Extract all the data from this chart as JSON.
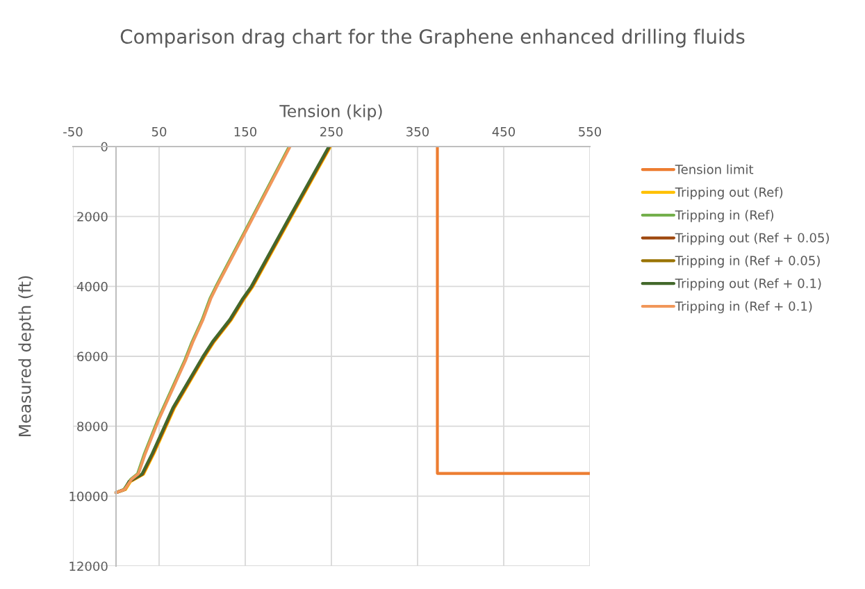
{
  "chart_data": {
    "type": "line",
    "title": "Comparison drag chart for the Graphene enhanced drilling fluids",
    "xlabel": "Tension (kip)",
    "ylabel": "Measured depth (ft)",
    "xlim": [
      -50,
      550
    ],
    "xticks": [
      -50,
      50,
      150,
      250,
      350,
      450,
      550
    ],
    "ylim": [
      12000,
      0
    ],
    "yticks": [
      0,
      2000,
      4000,
      6000,
      8000,
      10000,
      12000
    ],
    "grid": true,
    "legend": "right",
    "marker": "none",
    "line_style": "solid",
    "series": [
      {
        "name": "Tension limit",
        "color": "#ed7d31",
        "x": [
          373,
          373,
          550
        ],
        "values": [
          0,
          9350,
          9350
        ]
      },
      {
        "name": "Tripping out (Ref)",
        "color": "#ffc000",
        "x": [
          249,
          203,
          159,
          149,
          134,
          114,
          103,
          68,
          44,
          32,
          17,
          11,
          0
        ],
        "values": [
          0,
          2030,
          4000,
          4350,
          4950,
          5580,
          6000,
          7470,
          8780,
          9370,
          9580,
          9810,
          9900
        ]
      },
      {
        "name": "Tripping in (Ref)",
        "color": "#70ad47",
        "x": [
          201,
          148,
          116,
          109,
          100,
          88,
          80,
          49,
          33,
          25,
          17,
          9,
          0
        ],
        "values": [
          0,
          2500,
          4000,
          4350,
          4950,
          5600,
          6100,
          7790,
          8780,
          9360,
          9520,
          9810,
          9900
        ]
      },
      {
        "name": "Tripping out (Ref + 0.05)",
        "color": "#9e480e",
        "x": [
          248,
          202,
          158,
          148,
          133,
          113,
          102,
          67,
          43,
          31,
          16,
          10,
          0
        ],
        "values": [
          0,
          2030,
          4000,
          4350,
          4950,
          5580,
          6000,
          7470,
          8780,
          9370,
          9580,
          9810,
          9900
        ]
      },
      {
        "name": "Tripping in (Ref + 0.05)",
        "color": "#997300",
        "x": [
          null,
          null,
          null,
          null,
          null,
          null,
          null,
          null,
          null,
          null,
          null,
          null,
          null
        ],
        "values": [
          null,
          null,
          null,
          null,
          null,
          null,
          null,
          null,
          null,
          null,
          null,
          null,
          null
        ]
      },
      {
        "name": "Tripping out (Ref + 0.1)",
        "color": "#43682b",
        "x": [
          247,
          201,
          157,
          147,
          132,
          112,
          101,
          66,
          42,
          30,
          15,
          10,
          0
        ],
        "values": [
          0,
          2030,
          4000,
          4350,
          4950,
          5580,
          6000,
          7470,
          8780,
          9370,
          9580,
          9810,
          9900
        ]
      },
      {
        "name": "Tripping in (Ref + 0.1)",
        "color": "#f1975a",
        "x": [
          202,
          149,
          117,
          110,
          101,
          89,
          81,
          50,
          34,
          26,
          18,
          10,
          0
        ],
        "values": [
          0,
          2500,
          4000,
          4350,
          4950,
          5600,
          6100,
          7790,
          8780,
          9360,
          9520,
          9810,
          9900
        ]
      }
    ]
  }
}
